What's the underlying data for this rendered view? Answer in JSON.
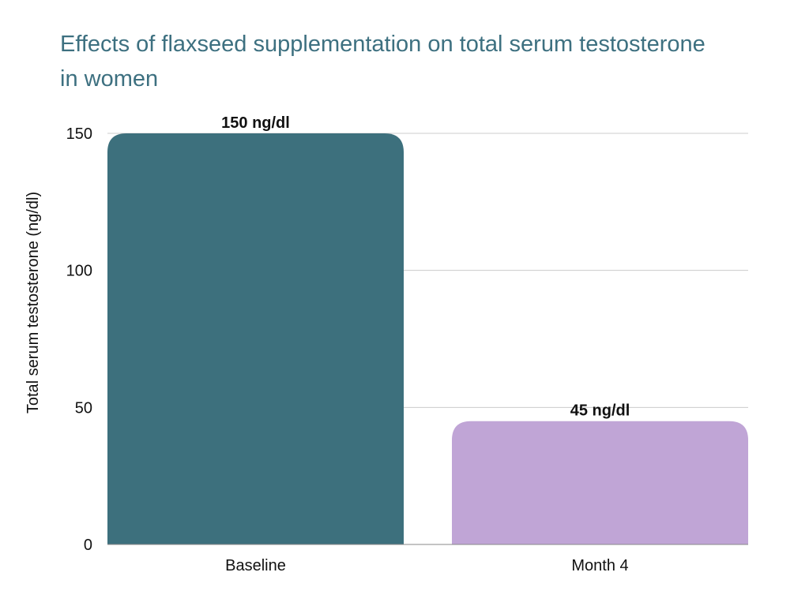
{
  "chart_data": {
    "type": "bar",
    "title": "Effects of flaxseed supplementation on total serum testosterone in women",
    "xlabel": "",
    "ylabel": "Total serum testosterone (ng/dl)",
    "categories": [
      "Baseline",
      "Month 4"
    ],
    "values": [
      150,
      45
    ],
    "data_labels": [
      "150 ng/dl",
      "45 ng/dl"
    ],
    "bar_colors": [
      "#3d707d",
      "#c0a5d6"
    ],
    "ylim": [
      0,
      150
    ],
    "yticks": [
      0,
      50,
      100,
      150
    ],
    "grid": true,
    "legend": "none"
  }
}
